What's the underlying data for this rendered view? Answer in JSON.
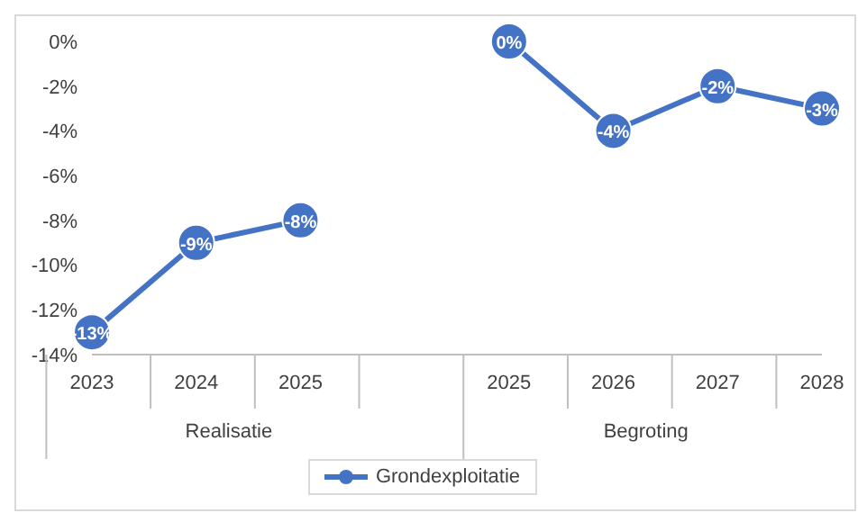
{
  "chart_data": {
    "type": "line",
    "categories": [
      "2023",
      "2024",
      "2025",
      null,
      "2025",
      "2026",
      "2027",
      "2028"
    ],
    "series": [
      {
        "name": "Grondexploitatie",
        "color": "#4472c4",
        "values": [
          -13,
          -9,
          -8,
          null,
          0,
          -4,
          -2,
          -3
        ],
        "value_labels": [
          "-13%",
          "-9%",
          "-8%",
          null,
          "0%",
          "-4%",
          "-2%",
          "-3%"
        ]
      }
    ],
    "annotations": [
      "Realisatie",
      "Begroting"
    ],
    "ylim": [
      -14,
      0
    ],
    "yticks": [
      {
        "value": 0,
        "label": "0%"
      },
      {
        "value": -2,
        "label": "-2%"
      },
      {
        "value": -4,
        "label": "-4%"
      },
      {
        "value": -6,
        "label": "-6%"
      },
      {
        "value": -8,
        "label": "-8%"
      },
      {
        "value": -10,
        "label": "-10%"
      },
      {
        "value": -12,
        "label": "-12%"
      },
      {
        "value": -14,
        "label": "-14%"
      }
    ],
    "grid": false,
    "legend": "bottom",
    "marker": "circle",
    "line_style": "solid"
  }
}
